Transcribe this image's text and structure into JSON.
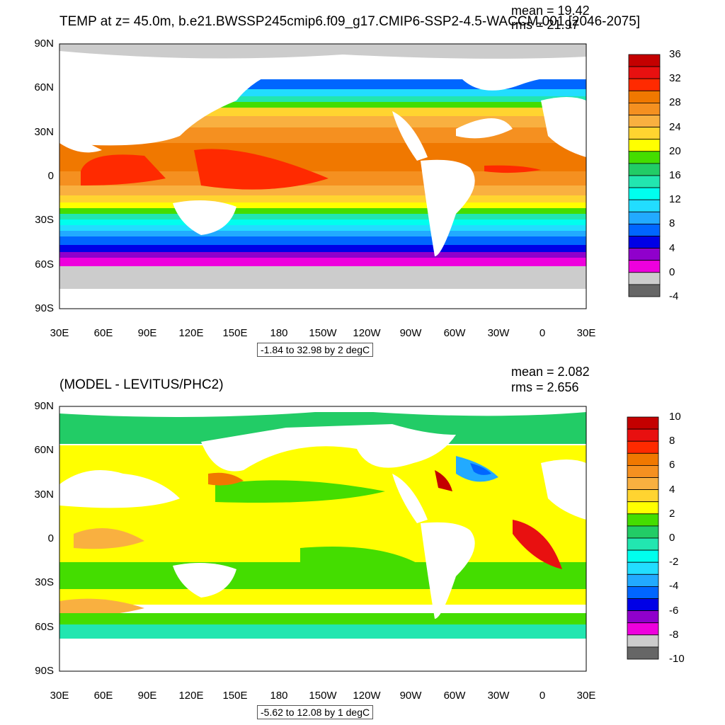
{
  "panel1": {
    "title": "TEMP at z=  45.0m, b.e21.BWSSP245cmip6.f09_g17.CMIP6-SSP2-4.5-WACCM.001 [2046-2075]",
    "mean_label": "mean = 19.42",
    "rms_label": "rms = 21.97",
    "contour_info": "-1.84 to 32.98 by 2 degC",
    "colorbar_labels": [
      "36",
      "32",
      "28",
      "24",
      "20",
      "16",
      "12",
      "8",
      "4",
      "0",
      "-4"
    ],
    "colorbar_colors": [
      "#c40000",
      "#e81010",
      "#ff2a00",
      "#f07800",
      "#f59020",
      "#f9b040",
      "#ffd430",
      "#ffff00",
      "#44dd00",
      "#22cc66",
      "#22e6b0",
      "#00ffee",
      "#22ddff",
      "#22aaff",
      "#0066ff",
      "#0000e6",
      "#9000cc",
      "#ee00dd",
      "#cccccc",
      "#666666"
    ]
  },
  "panel2": {
    "title": "(MODEL - LEVITUS/PHC2)",
    "mean_label": "mean = 2.082",
    "rms_label": "rms = 2.656",
    "contour_info": "-5.62 to 12.08 by 1 degC",
    "colorbar_labels": [
      "10",
      "8",
      "6",
      "4",
      "2",
      "0",
      "-2",
      "-4",
      "-6",
      "-8",
      "-10"
    ],
    "colorbar_colors": [
      "#c40000",
      "#e81010",
      "#ff2a00",
      "#f07800",
      "#f59020",
      "#f9b040",
      "#ffd430",
      "#ffff00",
      "#44dd00",
      "#22cc66",
      "#22e6b0",
      "#00ffee",
      "#22ddff",
      "#22aaff",
      "#0066ff",
      "#0000e6",
      "#9000cc",
      "#ee00dd",
      "#cccccc",
      "#666666"
    ]
  },
  "lat_labels": [
    "90N",
    "60N",
    "30N",
    "0",
    "30S",
    "60S",
    "90S"
  ],
  "lon_labels": [
    "30E",
    "60E",
    "90E",
    "120E",
    "150E",
    "180",
    "150W",
    "120W",
    "90W",
    "60W",
    "30W",
    "0",
    "30E"
  ]
}
